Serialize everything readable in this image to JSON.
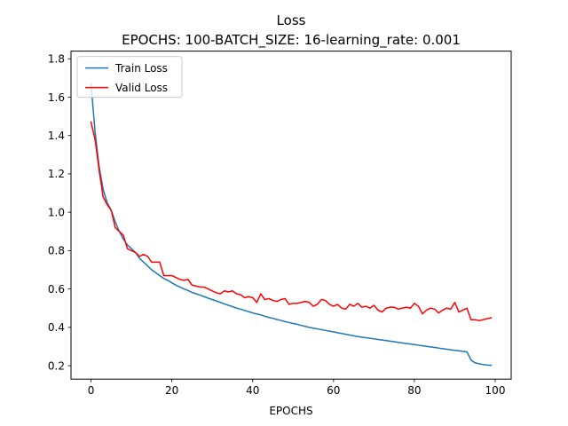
{
  "chart_data": {
    "type": "line",
    "title": "Loss",
    "subtitle": "EPOCHS: 100-BATCH_SIZE: 16-learning_rate: 0.001",
    "xlabel": "EPOCHS",
    "ylabel": "",
    "xlim": [
      -4.95,
      103.95
    ],
    "ylim": [
      0.13,
      1.84
    ],
    "xticks": [
      0,
      20,
      40,
      60,
      80,
      100
    ],
    "yticks": [
      0.2,
      0.4,
      0.6,
      0.8,
      1.0,
      1.2,
      1.4,
      1.6,
      1.8
    ],
    "grid": false,
    "legend": "top-left",
    "series": [
      {
        "name": "Train Loss",
        "color": "#1f77b4",
        "x": [
          0,
          1,
          2,
          3,
          4,
          5,
          6,
          7,
          8,
          9,
          10,
          11,
          12,
          13,
          14,
          15,
          16,
          17,
          18,
          19,
          20,
          21,
          22,
          23,
          24,
          25,
          26,
          27,
          28,
          29,
          30,
          31,
          32,
          33,
          34,
          35,
          36,
          37,
          38,
          39,
          40,
          41,
          42,
          43,
          44,
          45,
          46,
          47,
          48,
          49,
          50,
          51,
          52,
          53,
          54,
          55,
          56,
          57,
          58,
          59,
          60,
          61,
          62,
          63,
          64,
          65,
          66,
          67,
          68,
          69,
          70,
          71,
          72,
          73,
          74,
          75,
          76,
          77,
          78,
          79,
          80,
          81,
          82,
          83,
          84,
          85,
          86,
          87,
          88,
          89,
          90,
          91,
          92,
          93,
          94,
          95,
          96,
          97,
          98,
          99
        ],
        "values": [
          1.67,
          1.42,
          1.24,
          1.12,
          1.05,
          1.01,
          0.95,
          0.9,
          0.86,
          0.83,
          0.81,
          0.79,
          0.76,
          0.74,
          0.72,
          0.7,
          0.685,
          0.67,
          0.655,
          0.645,
          0.632,
          0.62,
          0.61,
          0.6,
          0.592,
          0.582,
          0.575,
          0.568,
          0.56,
          0.552,
          0.545,
          0.538,
          0.53,
          0.522,
          0.515,
          0.508,
          0.5,
          0.495,
          0.488,
          0.482,
          0.475,
          0.47,
          0.465,
          0.458,
          0.452,
          0.447,
          0.441,
          0.436,
          0.43,
          0.425,
          0.42,
          0.416,
          0.41,
          0.405,
          0.4,
          0.396,
          0.392,
          0.388,
          0.384,
          0.38,
          0.376,
          0.372,
          0.368,
          0.364,
          0.36,
          0.356,
          0.352,
          0.349,
          0.346,
          0.343,
          0.34,
          0.337,
          0.334,
          0.331,
          0.328,
          0.325,
          0.322,
          0.319,
          0.316,
          0.313,
          0.31,
          0.307,
          0.304,
          0.301,
          0.298,
          0.295,
          0.292,
          0.289,
          0.286,
          0.283,
          0.28,
          0.278,
          0.275,
          0.272,
          0.23,
          0.215,
          0.21,
          0.206,
          0.203,
          0.202
        ]
      },
      {
        "name": "Valid Loss",
        "color": "#ff0000",
        "x": [
          0,
          1,
          2,
          3,
          4,
          5,
          6,
          7,
          8,
          9,
          10,
          11,
          12,
          13,
          14,
          15,
          16,
          17,
          18,
          19,
          20,
          21,
          22,
          23,
          24,
          25,
          26,
          27,
          28,
          29,
          30,
          31,
          32,
          33,
          34,
          35,
          36,
          37,
          38,
          39,
          40,
          41,
          42,
          43,
          44,
          45,
          46,
          47,
          48,
          49,
          50,
          51,
          52,
          53,
          54,
          55,
          56,
          57,
          58,
          59,
          60,
          61,
          62,
          63,
          64,
          65,
          66,
          67,
          68,
          69,
          70,
          71,
          72,
          73,
          74,
          75,
          76,
          77,
          78,
          79,
          80,
          81,
          82,
          83,
          84,
          85,
          86,
          87,
          88,
          89,
          90,
          91,
          92,
          93,
          94,
          95,
          96,
          97,
          98,
          99
        ],
        "values": [
          1.47,
          1.38,
          1.22,
          1.08,
          1.04,
          1.01,
          0.92,
          0.9,
          0.88,
          0.81,
          0.8,
          0.79,
          0.77,
          0.78,
          0.77,
          0.74,
          0.74,
          0.74,
          0.67,
          0.67,
          0.67,
          0.66,
          0.65,
          0.645,
          0.65,
          0.62,
          0.615,
          0.61,
          0.61,
          0.6,
          0.59,
          0.58,
          0.575,
          0.59,
          0.585,
          0.59,
          0.575,
          0.57,
          0.555,
          0.56,
          0.555,
          0.53,
          0.575,
          0.545,
          0.55,
          0.54,
          0.535,
          0.545,
          0.55,
          0.52,
          0.525,
          0.525,
          0.53,
          0.535,
          0.53,
          0.51,
          0.52,
          0.545,
          0.54,
          0.52,
          0.51,
          0.52,
          0.5,
          0.495,
          0.52,
          0.51,
          0.525,
          0.505,
          0.51,
          0.5,
          0.515,
          0.49,
          0.48,
          0.5,
          0.505,
          0.505,
          0.495,
          0.5,
          0.505,
          0.5,
          0.525,
          0.51,
          0.47,
          0.49,
          0.5,
          0.495,
          0.475,
          0.49,
          0.5,
          0.495,
          0.53,
          0.48,
          0.49,
          0.5,
          0.44,
          0.44,
          0.435,
          0.44,
          0.445,
          0.45
        ]
      }
    ]
  }
}
